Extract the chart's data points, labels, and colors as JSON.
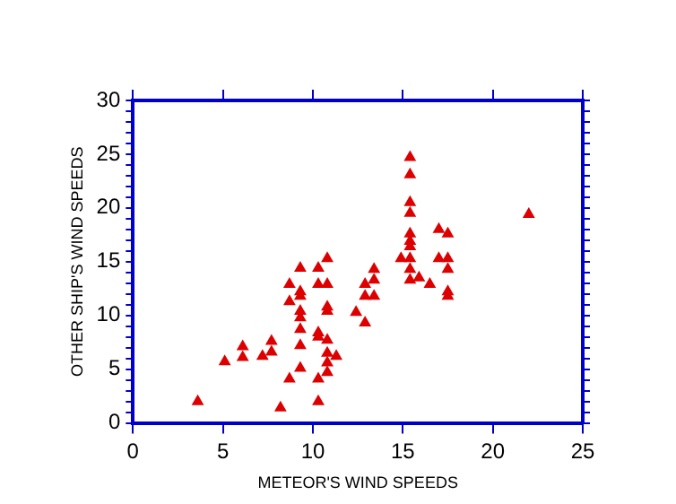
{
  "chart_data": {
    "type": "scatter",
    "xlabel": "METEOR'S WIND SPEEDS",
    "ylabel": "OTHER SHIP'S WIND SPEEDS",
    "marker": "triangle",
    "grid": false,
    "legend": false,
    "xlim": [
      0,
      25
    ],
    "xticks": [
      0,
      5,
      10,
      15,
      20,
      25
    ],
    "ylim": [
      0,
      30
    ],
    "yticks": [
      0,
      {
        "value": 1,
        "label": null
      },
      {
        "value": 2,
        "label": null
      },
      {
        "value": 3,
        "label": null
      },
      {
        "value": 4,
        "label": null
      },
      5,
      {
        "value": 6,
        "label": null
      },
      {
        "value": 7,
        "label": null
      },
      {
        "value": 8,
        "label": null
      },
      {
        "value": 9,
        "label": null
      },
      10,
      {
        "value": 11,
        "label": null
      },
      {
        "value": 12,
        "label": null
      },
      {
        "value": 13,
        "label": null
      },
      {
        "value": 14,
        "label": null
      },
      15,
      {
        "value": 16,
        "label": null
      },
      {
        "value": 17,
        "label": null
      },
      {
        "value": 18,
        "label": null
      },
      {
        "value": 19,
        "label": null
      },
      20,
      {
        "value": 21,
        "label": null
      },
      {
        "value": 22,
        "label": null
      },
      {
        "value": 23,
        "label": null
      },
      {
        "value": 24,
        "label": null
      },
      25,
      {
        "value": 26,
        "label": null
      },
      {
        "value": 27,
        "label": null
      },
      {
        "value": 28,
        "label": null
      },
      {
        "value": 29,
        "label": null
      },
      30
    ],
    "series": [
      {
        "color": "#dd0000",
        "x": [
          3.6,
          5.1,
          6.1,
          6.1,
          7.2,
          7.7,
          7.7,
          8.2,
          8.7,
          8.7,
          8.7,
          9.3,
          9.3,
          9.3,
          9.3,
          9.3,
          9.3,
          9.3,
          9.3,
          10.3,
          10.3,
          10.3,
          10.3,
          10.3,
          10.3,
          10.8,
          10.8,
          10.8,
          10.8,
          10.8,
          10.8,
          10.8,
          10.8,
          11.3,
          12.4,
          12.9,
          12.9,
          12.9,
          13.4,
          13.4,
          13.4,
          15.4,
          15.4,
          15.4,
          15.4,
          15.4,
          15.4,
          15.4,
          14.9,
          15.4,
          15.4,
          15.4,
          15.9,
          16.5,
          17.0,
          17.5,
          17.0,
          17.5,
          17.5,
          17.5,
          17.5,
          22.0
        ],
        "values": [
          2.0,
          5.7,
          7.1,
          6.1,
          6.2,
          7.6,
          6.6,
          1.4,
          4.1,
          12.9,
          11.3,
          14.4,
          12.2,
          11.8,
          10.4,
          9.8,
          8.7,
          7.2,
          5.1,
          14.4,
          12.9,
          8.4,
          8.0,
          4.1,
          2.0,
          15.3,
          12.9,
          10.8,
          10.4,
          7.7,
          6.5,
          5.6,
          4.7,
          6.2,
          10.3,
          9.3,
          12.9,
          11.8,
          11.8,
          13.3,
          14.3,
          24.7,
          23.1,
          20.5,
          19.5,
          17.6,
          16.9,
          16.4,
          15.3,
          15.3,
          14.3,
          13.3,
          13.5,
          12.9,
          18.0,
          17.6,
          15.3,
          15.3,
          14.3,
          12.2,
          11.8,
          19.4
        ]
      }
    ]
  }
}
